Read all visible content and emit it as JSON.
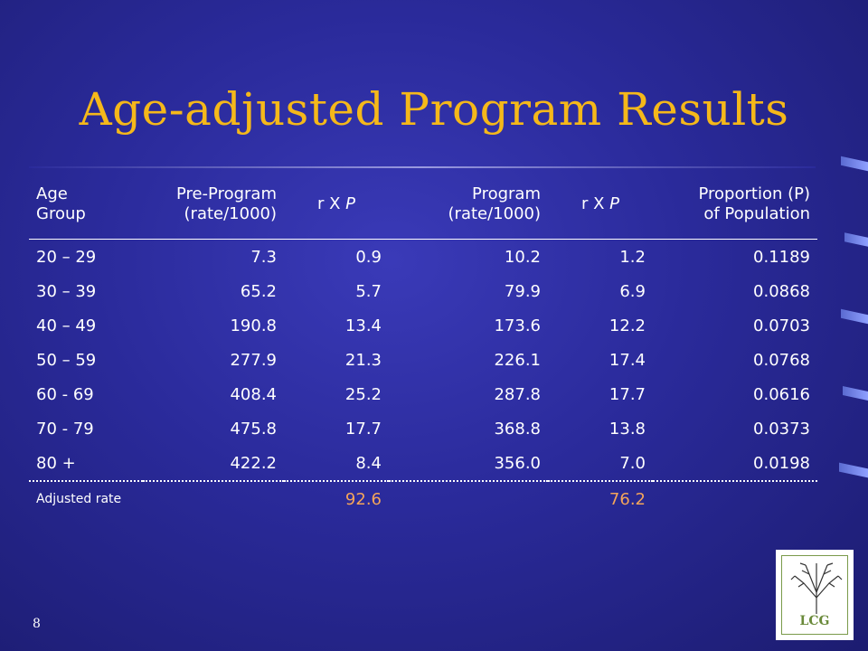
{
  "slide": {
    "title": "Age-adjusted Program Results",
    "page_number": "8"
  },
  "table": {
    "headers": {
      "age_group": [
        "Age",
        "Group"
      ],
      "pre_program": [
        "Pre-Program",
        "(rate/1000)"
      ],
      "rxp1": "r X P",
      "program": [
        "Program",
        "(rate/1000)"
      ],
      "rxp2": "r X P",
      "proportion": [
        "Proportion (P)",
        "of Population"
      ]
    },
    "rows": [
      [
        "20 – 29",
        "7.3",
        "0.9",
        "10.2",
        "1.2",
        "0.1189"
      ],
      [
        "30 – 39",
        "65.2",
        "5.7",
        "79.9",
        "6.9",
        "0.0868"
      ],
      [
        "40 – 49",
        "190.8",
        "13.4",
        "173.6",
        "12.2",
        "0.0703"
      ],
      [
        "50 – 59",
        "277.9",
        "21.3",
        "226.1",
        "17.4",
        "0.0768"
      ],
      [
        "60 - 69",
        "408.4",
        "25.2",
        "287.8",
        "17.7",
        "0.0616"
      ],
      [
        "70 - 79",
        "475.8",
        "17.7",
        "368.8",
        "13.8",
        "0.0373"
      ],
      [
        "80 +",
        "422.2",
        "8.4",
        "356.0",
        "7.0",
        "0.0198"
      ]
    ],
    "footer": {
      "label": "Adjusted rate",
      "pre_adjusted": "92.6",
      "program_adjusted": "76.2"
    }
  },
  "logo": {
    "text": "LCG",
    "icon": "tree-icon"
  },
  "colors": {
    "background": "#2a2a9a",
    "title": "#f5b81a",
    "highlight": "#f5a55a"
  }
}
